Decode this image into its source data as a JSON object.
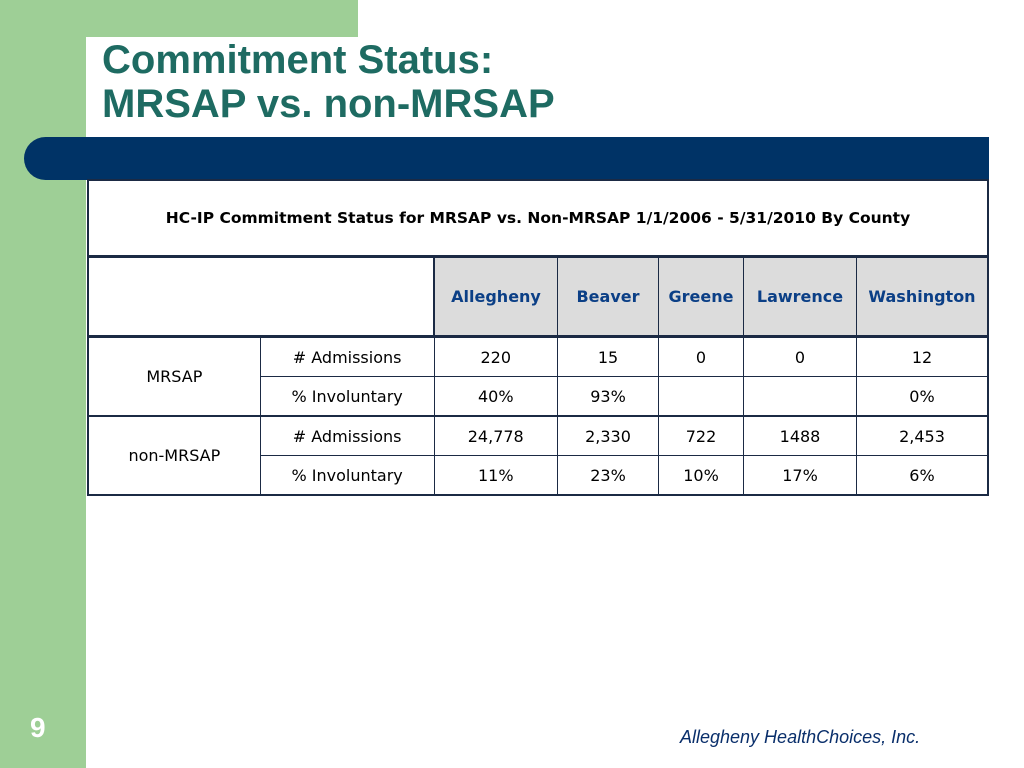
{
  "slide": {
    "title_line1": "Commitment Status:",
    "title_line2": "MRSAP vs. non-MRSAP",
    "number": "9",
    "footer": "Allegheny HealthChoices, Inc."
  },
  "table": {
    "caption": "HC-IP Commitment Status for MRSAP vs. Non-MRSAP 1/1/2006 - 5/31/2010 By County",
    "columns": [
      "Allegheny",
      "Beaver",
      "Greene",
      "Lawrence",
      "Washington"
    ],
    "groups": [
      {
        "label": "MRSAP",
        "rows": [
          {
            "metric": "# Admissions",
            "values": [
              "220",
              "15",
              "0",
              "0",
              "12"
            ]
          },
          {
            "metric": "% Involuntary",
            "values": [
              "40%",
              "93%",
              "",
              "",
              "0%"
            ]
          }
        ]
      },
      {
        "label": "non-MRSAP",
        "rows": [
          {
            "metric": "# Admissions",
            "values": [
              "24,778",
              "2,330",
              "722",
              "1488",
              "2,453"
            ]
          },
          {
            "metric": "% Involuntary",
            "values": [
              "11%",
              "23%",
              "10%",
              "17%",
              "6%"
            ]
          }
        ]
      }
    ]
  },
  "colors": {
    "green": "#9ecf96",
    "title_teal": "#1e6b62",
    "navy": "#003366",
    "header_text": "#0b3f86"
  }
}
